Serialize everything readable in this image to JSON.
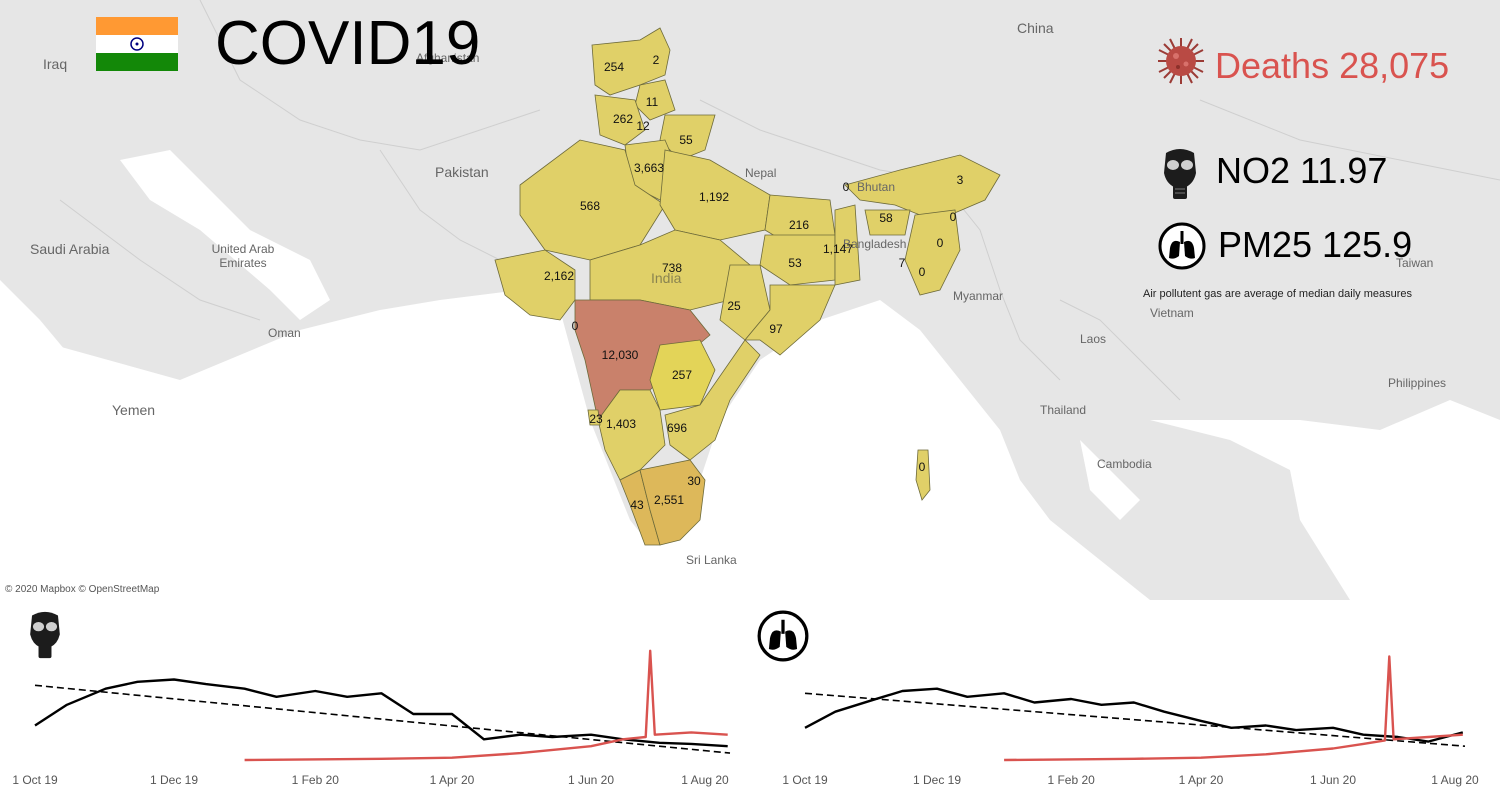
{
  "header": {
    "title": "COVID19",
    "flag_icon": "india-flag-icon"
  },
  "kpis": {
    "deaths_label": "Deaths 28,075",
    "deaths_icon": "virus-icon",
    "no2_label": "NO2 11.97",
    "no2_icon": "gas-mask-icon",
    "pm25_label": "PM25 125.9",
    "pm25_icon": "lungs-icon",
    "note": "Air pollutent gas are average of median daily measures",
    "colors": {
      "deaths": "#d9534f",
      "value": "#000000"
    }
  },
  "map": {
    "attribution": "© 2020 Mapbox © OpenStreetMap",
    "countries": [
      "China",
      "Iraq",
      "Pakistan",
      "Afghanistan",
      "Nepal",
      "Bhutan",
      "Bangladesh",
      "Saudi Arabia",
      "United Arab Emirates",
      "Oman",
      "Yemen",
      "India",
      "Myanmar",
      "Laos",
      "Thailand",
      "Vietnam",
      "Cambodia",
      "Taiwan",
      "Philippines",
      "Sri Lanka"
    ],
    "colors": {
      "land": "#e6e6e6",
      "sea": "#ffffff",
      "state_low": "#e0d068",
      "state_high": "#c9816b"
    },
    "state_deaths": [
      {
        "region": "Jammu and Kashmir",
        "deaths": 254
      },
      {
        "region": "Ladakh",
        "deaths": 2
      },
      {
        "region": "Himachal Pradesh",
        "deaths": 11
      },
      {
        "region": "Punjab",
        "deaths": 262
      },
      {
        "region": "Chandigarh",
        "deaths": 12
      },
      {
        "region": "Uttarakhand",
        "deaths": 55
      },
      {
        "region": "Delhi",
        "deaths": 3663
      },
      {
        "region": "Rajasthan",
        "deaths": 568
      },
      {
        "region": "Uttar Pradesh",
        "deaths": 1192
      },
      {
        "region": "Bihar",
        "deaths": 216
      },
      {
        "region": "Sikkim",
        "deaths": 0
      },
      {
        "region": "Arunachal Pradesh",
        "deaths": 3
      },
      {
        "region": "Assam",
        "deaths": 58
      },
      {
        "region": "Nagaland",
        "deaths": 0
      },
      {
        "region": "Manipur",
        "deaths": 0
      },
      {
        "region": "West Bengal",
        "deaths": 1147
      },
      {
        "region": "Jharkhand",
        "deaths": 53
      },
      {
        "region": "Tripura",
        "deaths": 7
      },
      {
        "region": "Mizoram",
        "deaths": 0
      },
      {
        "region": "Gujarat",
        "deaths": 2162
      },
      {
        "region": "Madhya Pradesh",
        "deaths": 738
      },
      {
        "region": "Chhattisgarh",
        "deaths": 25
      },
      {
        "region": "Odisha",
        "deaths": 97
      },
      {
        "region": "Dadra and Nagar Haveli",
        "deaths": 0
      },
      {
        "region": "Maharashtra",
        "deaths": 12030
      },
      {
        "region": "Telangana",
        "deaths": 257
      },
      {
        "region": "Goa",
        "deaths": 23
      },
      {
        "region": "Karnataka",
        "deaths": 1403
      },
      {
        "region": "Andhra Pradesh",
        "deaths": 696
      },
      {
        "region": "Puducherry",
        "deaths": 30
      },
      {
        "region": "Tamil Nadu",
        "deaths": 2551
      },
      {
        "region": "Kerala",
        "deaths": 43
      },
      {
        "region": "Andaman and Nicobar",
        "deaths": 0
      }
    ],
    "state_labels": [
      "254",
      "2",
      "11",
      "262",
      "12",
      "55",
      "3,663",
      "568",
      "1,192",
      "216",
      "0",
      "3",
      "58",
      "0",
      "0",
      "1,147",
      "53",
      "7",
      "0",
      "2,162",
      "738",
      "25",
      "97",
      "0",
      "12,030",
      "257",
      "23",
      "1,403",
      "696",
      "30",
      "2,551",
      "43",
      "0"
    ]
  },
  "chart_data": [
    {
      "type": "line",
      "icon": "gas-mask-icon",
      "x_ticks": [
        "1 Oct 19",
        "1 Dec 19",
        "1 Feb 20",
        "1 Apr 20",
        "1 Jun 20",
        "1 Aug 20"
      ],
      "x_range": [
        "2019-10-01",
        "2020-08-01"
      ],
      "series": [
        {
          "color": "#000000",
          "style": "solid",
          "points": [
            [
              "2019-10-01",
              0.3
            ],
            [
              "2019-10-15",
              0.48
            ],
            [
              "2019-11-01",
              0.62
            ],
            [
              "2019-11-15",
              0.68
            ],
            [
              "2019-12-01",
              0.7
            ],
            [
              "2019-12-15",
              0.66
            ],
            [
              "2020-01-01",
              0.62
            ],
            [
              "2020-01-15",
              0.55
            ],
            [
              "2020-02-01",
              0.6
            ],
            [
              "2020-02-15",
              0.55
            ],
            [
              "2020-03-01",
              0.58
            ],
            [
              "2020-03-15",
              0.4
            ],
            [
              "2020-04-01",
              0.4
            ],
            [
              "2020-04-15",
              0.18
            ],
            [
              "2020-05-01",
              0.22
            ],
            [
              "2020-05-15",
              0.2
            ],
            [
              "2020-06-01",
              0.22
            ],
            [
              "2020-06-15",
              0.18
            ],
            [
              "2020-07-01",
              0.15
            ],
            [
              "2020-07-15",
              0.14
            ],
            [
              "2020-07-31",
              0.12
            ]
          ]
        },
        {
          "color": "#000000",
          "style": "dashed",
          "points": [
            [
              "2019-10-01",
              0.65
            ],
            [
              "2020-08-01",
              0.06
            ]
          ]
        },
        {
          "color": "#d9534f",
          "style": "solid",
          "points": [
            [
              "2020-01-01",
              0.0
            ],
            [
              "2020-03-01",
              0.01
            ],
            [
              "2020-04-01",
              0.02
            ],
            [
              "2020-05-01",
              0.06
            ],
            [
              "2020-06-01",
              0.12
            ],
            [
              "2020-06-15",
              0.18
            ],
            [
              "2020-06-25",
              0.2
            ],
            [
              "2020-06-27",
              0.95
            ],
            [
              "2020-06-29",
              0.22
            ],
            [
              "2020-07-15",
              0.24
            ],
            [
              "2020-07-31",
              0.22
            ]
          ]
        }
      ]
    },
    {
      "type": "line",
      "icon": "lungs-icon",
      "x_ticks": [
        "1 Oct 19",
        "1 Dec 19",
        "1 Feb 20",
        "1 Apr 20",
        "1 Jun 20",
        "1 Aug 20"
      ],
      "x_range": [
        "2019-10-01",
        "2020-08-01"
      ],
      "series": [
        {
          "color": "#000000",
          "style": "solid",
          "points": [
            [
              "2019-10-01",
              0.28
            ],
            [
              "2019-10-15",
              0.42
            ],
            [
              "2019-11-01",
              0.52
            ],
            [
              "2019-11-15",
              0.6
            ],
            [
              "2019-12-01",
              0.62
            ],
            [
              "2019-12-15",
              0.55
            ],
            [
              "2020-01-01",
              0.58
            ],
            [
              "2020-01-15",
              0.5
            ],
            [
              "2020-02-01",
              0.53
            ],
            [
              "2020-02-15",
              0.48
            ],
            [
              "2020-03-01",
              0.5
            ],
            [
              "2020-03-15",
              0.42
            ],
            [
              "2020-04-01",
              0.34
            ],
            [
              "2020-04-15",
              0.28
            ],
            [
              "2020-05-01",
              0.3
            ],
            [
              "2020-05-15",
              0.26
            ],
            [
              "2020-06-01",
              0.28
            ],
            [
              "2020-06-15",
              0.22
            ],
            [
              "2020-07-01",
              0.2
            ],
            [
              "2020-07-15",
              0.16
            ],
            [
              "2020-07-31",
              0.24
            ]
          ]
        },
        {
          "color": "#000000",
          "style": "dashed",
          "points": [
            [
              "2019-10-01",
              0.58
            ],
            [
              "2020-08-01",
              0.12
            ]
          ]
        },
        {
          "color": "#d9534f",
          "style": "solid",
          "points": [
            [
              "2020-01-01",
              0.0
            ],
            [
              "2020-03-01",
              0.01
            ],
            [
              "2020-04-01",
              0.02
            ],
            [
              "2020-05-01",
              0.05
            ],
            [
              "2020-06-01",
              0.1
            ],
            [
              "2020-06-15",
              0.14
            ],
            [
              "2020-06-25",
              0.17
            ],
            [
              "2020-06-27",
              0.9
            ],
            [
              "2020-06-29",
              0.18
            ],
            [
              "2020-07-15",
              0.2
            ],
            [
              "2020-07-31",
              0.22
            ]
          ]
        }
      ]
    }
  ]
}
